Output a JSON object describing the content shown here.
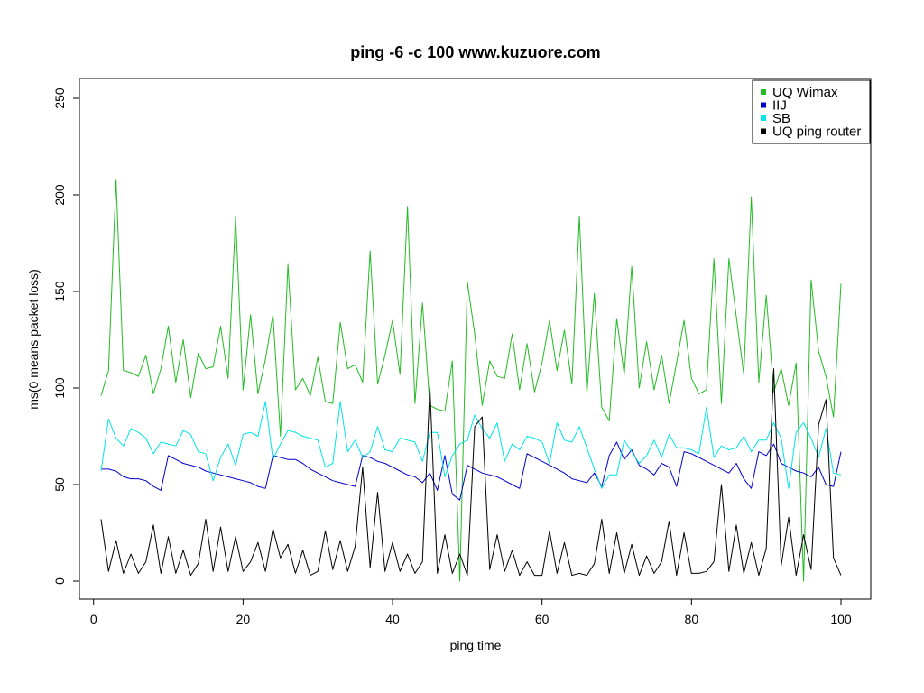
{
  "chart_data": {
    "type": "line",
    "title": "ping -6 -c 100 www.kuzuore.com",
    "xlabel": "ping time",
    "ylabel": "ms(0 means packet loss)",
    "xlim": [
      1,
      100
    ],
    "ylim": [
      0,
      250
    ],
    "xticks": [
      0,
      20,
      40,
      60,
      80,
      100
    ],
    "yticks": [
      0,
      50,
      100,
      150,
      200,
      250
    ],
    "grid": false,
    "legend_position": "top-right",
    "x": [
      1,
      2,
      3,
      4,
      5,
      6,
      7,
      8,
      9,
      10,
      11,
      12,
      13,
      14,
      15,
      16,
      17,
      18,
      19,
      20,
      21,
      22,
      23,
      24,
      25,
      26,
      27,
      28,
      29,
      30,
      31,
      32,
      33,
      34,
      35,
      36,
      37,
      38,
      39,
      40,
      41,
      42,
      43,
      44,
      45,
      46,
      47,
      48,
      49,
      50,
      51,
      52,
      53,
      54,
      55,
      56,
      57,
      58,
      59,
      60,
      61,
      62,
      63,
      64,
      65,
      66,
      67,
      68,
      69,
      70,
      71,
      72,
      73,
      74,
      75,
      76,
      77,
      78,
      79,
      80,
      81,
      82,
      83,
      84,
      85,
      86,
      87,
      88,
      89,
      90,
      91,
      92,
      93,
      94,
      95,
      96,
      97,
      98,
      99,
      100
    ],
    "series": [
      {
        "name": "UQ Wimax",
        "color": "#22bb22",
        "values": [
          96,
          109,
          208,
          109,
          108,
          106,
          117,
          97,
          110,
          132,
          103,
          125,
          95,
          118,
          110,
          111,
          132,
          105,
          189,
          99,
          138,
          97,
          115,
          138,
          75,
          164,
          99,
          105,
          96,
          116,
          93,
          92,
          134,
          110,
          112,
          103,
          171,
          102,
          117,
          135,
          107,
          194,
          92,
          144,
          91,
          89,
          88,
          114,
          0,
          155,
          128,
          91,
          114,
          106,
          105,
          128,
          99,
          123,
          98,
          113,
          135,
          109,
          130,
          102,
          189,
          97,
          149,
          90,
          83,
          136,
          107,
          163,
          100,
          124,
          99,
          117,
          92,
          113,
          135,
          105,
          97,
          99,
          167,
          92,
          167,
          137,
          107,
          199,
          103,
          148,
          98,
          110,
          91,
          113,
          0,
          156,
          119,
          106,
          85,
          154
        ]
      },
      {
        "name": "IIJ",
        "color": "#0000cc",
        "values": [
          58,
          58,
          57,
          54,
          53,
          53,
          52,
          49,
          47,
          65,
          63,
          61,
          60,
          59,
          57,
          56,
          55,
          54,
          53,
          52,
          51,
          49,
          48,
          65,
          64,
          63,
          63,
          61,
          58,
          56,
          54,
          52,
          51,
          50,
          49,
          65,
          64,
          62,
          61,
          59,
          57,
          55,
          54,
          51,
          56,
          47,
          65,
          45,
          42,
          60,
          58,
          56,
          55,
          54,
          52,
          50,
          48,
          66,
          64,
          62,
          60,
          58,
          56,
          53,
          52,
          51,
          56,
          49,
          65,
          72,
          63,
          68,
          60,
          58,
          55,
          61,
          59,
          49,
          67,
          66,
          64,
          62,
          60,
          58,
          56,
          61,
          53,
          48,
          67,
          65,
          71,
          61,
          59,
          57,
          56,
          54,
          59,
          50,
          49,
          67
        ]
      },
      {
        "name": "SB",
        "color": "#00e5e5",
        "values": [
          57,
          84,
          74,
          70,
          79,
          77,
          74,
          66,
          72,
          71,
          70,
          78,
          76,
          67,
          66,
          52,
          64,
          71,
          60,
          76,
          77,
          75,
          93,
          63,
          71,
          78,
          77,
          75,
          74,
          73,
          59,
          61,
          93,
          67,
          73,
          64,
          67,
          80,
          68,
          67,
          74,
          73,
          72,
          62,
          77,
          77,
          54,
          65,
          71,
          73,
          86,
          79,
          74,
          82,
          62,
          71,
          68,
          75,
          74,
          72,
          61,
          82,
          73,
          72,
          80,
          69,
          58,
          48,
          55,
          55,
          73,
          67,
          61,
          65,
          73,
          64,
          76,
          69,
          69,
          68,
          66,
          90,
          64,
          70,
          68,
          69,
          75,
          67,
          73,
          73,
          82,
          74,
          48,
          77,
          82,
          74,
          64,
          79,
          56,
          55
        ]
      },
      {
        "name": "UQ ping router",
        "color": "#000000",
        "values": [
          32,
          5,
          21,
          4,
          14,
          4,
          10,
          29,
          4,
          23,
          4,
          16,
          3,
          9,
          32,
          5,
          28,
          5,
          23,
          5,
          10,
          20,
          5,
          27,
          12,
          19,
          4,
          16,
          3,
          5,
          26,
          6,
          21,
          5,
          18,
          59,
          7,
          46,
          5,
          20,
          5,
          14,
          4,
          10,
          101,
          4,
          24,
          4,
          14,
          3,
          80,
          85,
          6,
          24,
          5,
          16,
          3,
          10,
          3,
          3,
          26,
          4,
          20,
          3,
          4,
          3,
          9,
          32,
          4,
          25,
          4,
          19,
          3,
          13,
          4,
          10,
          31,
          3,
          25,
          4,
          4,
          5,
          10,
          50,
          5,
          29,
          4,
          20,
          3,
          17,
          110,
          8,
          33,
          3,
          24,
          6,
          81,
          94,
          12,
          3
        ]
      }
    ]
  }
}
